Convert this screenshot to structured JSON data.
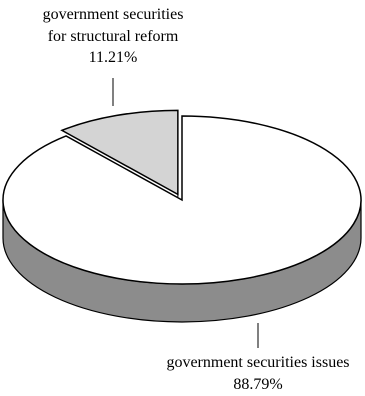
{
  "chart_data": {
    "type": "pie",
    "style": "3d-exploded",
    "slices": [
      {
        "label_lines": [
          "government securities",
          "for structural reform"
        ],
        "value": 11.21,
        "value_text": "11.21%",
        "color": "#d4d4d4",
        "side_color": "#b0b0b0",
        "exploded": true
      },
      {
        "label_lines": [
          "government securities issues"
        ],
        "value": 88.79,
        "value_text": "88.79%",
        "color": "#ffffff",
        "side_color": "#8c8c8c",
        "exploded": false
      }
    ]
  }
}
